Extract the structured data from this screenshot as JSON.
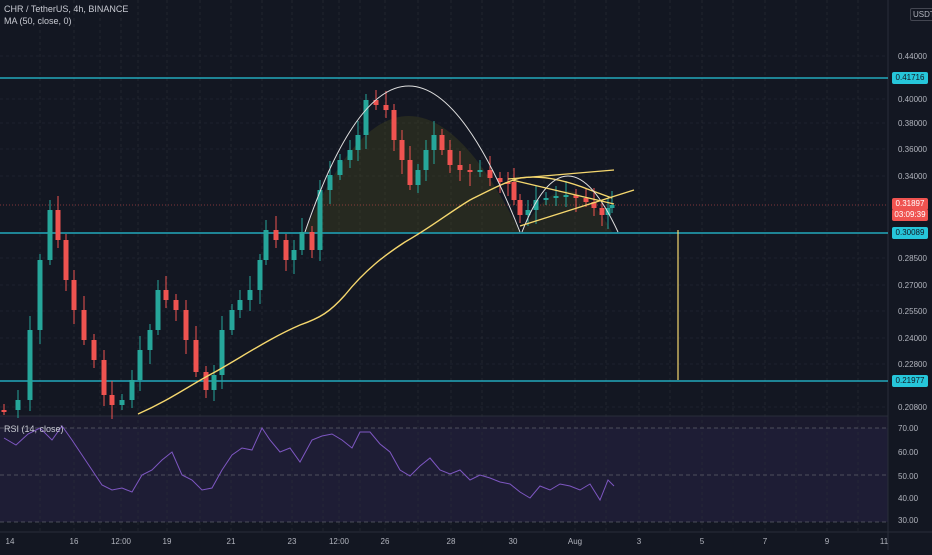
{
  "header": {
    "symbol_line": "CHR / TetherUS, 4h, BINANCE",
    "ma_legend": "MA (50, close, 0)",
    "rsi_legend": "RSI (14, close)",
    "currency": "USDT"
  },
  "price_axis": {
    "labels": [
      "0.44000",
      "0.40000",
      "0.38000",
      "0.36000",
      "0.34000",
      "0.28500",
      "0.27000",
      "0.25500",
      "0.24000",
      "0.22800",
      "0.20800"
    ],
    "highlight_boxes": [
      {
        "name": "level-0-41716",
        "price": "0.41716"
      },
      {
        "name": "level-0-30089",
        "price": "0.30089"
      },
      {
        "name": "level-0-21977",
        "price": "0.21977"
      }
    ],
    "last_price": "0.31897",
    "countdown": "03:09:39"
  },
  "rsi_axis": {
    "labels": [
      "70.00",
      "60.00",
      "50.00",
      "40.00",
      "30.00"
    ]
  },
  "time_axis": {
    "labels": [
      "14",
      "16",
      "12:00",
      "19",
      "21",
      "23",
      "12:00",
      "26",
      "28",
      "30",
      "Aug",
      "3",
      "5",
      "7",
      "9",
      "11"
    ]
  },
  "colors": {
    "bg": "#131722",
    "up": "#26a69a",
    "down": "#ef5350",
    "cyan": "#26c6da",
    "ma": "#f5d76e",
    "rsi": "#7e57c2",
    "pattern": "#e0e0e0"
  }
}
